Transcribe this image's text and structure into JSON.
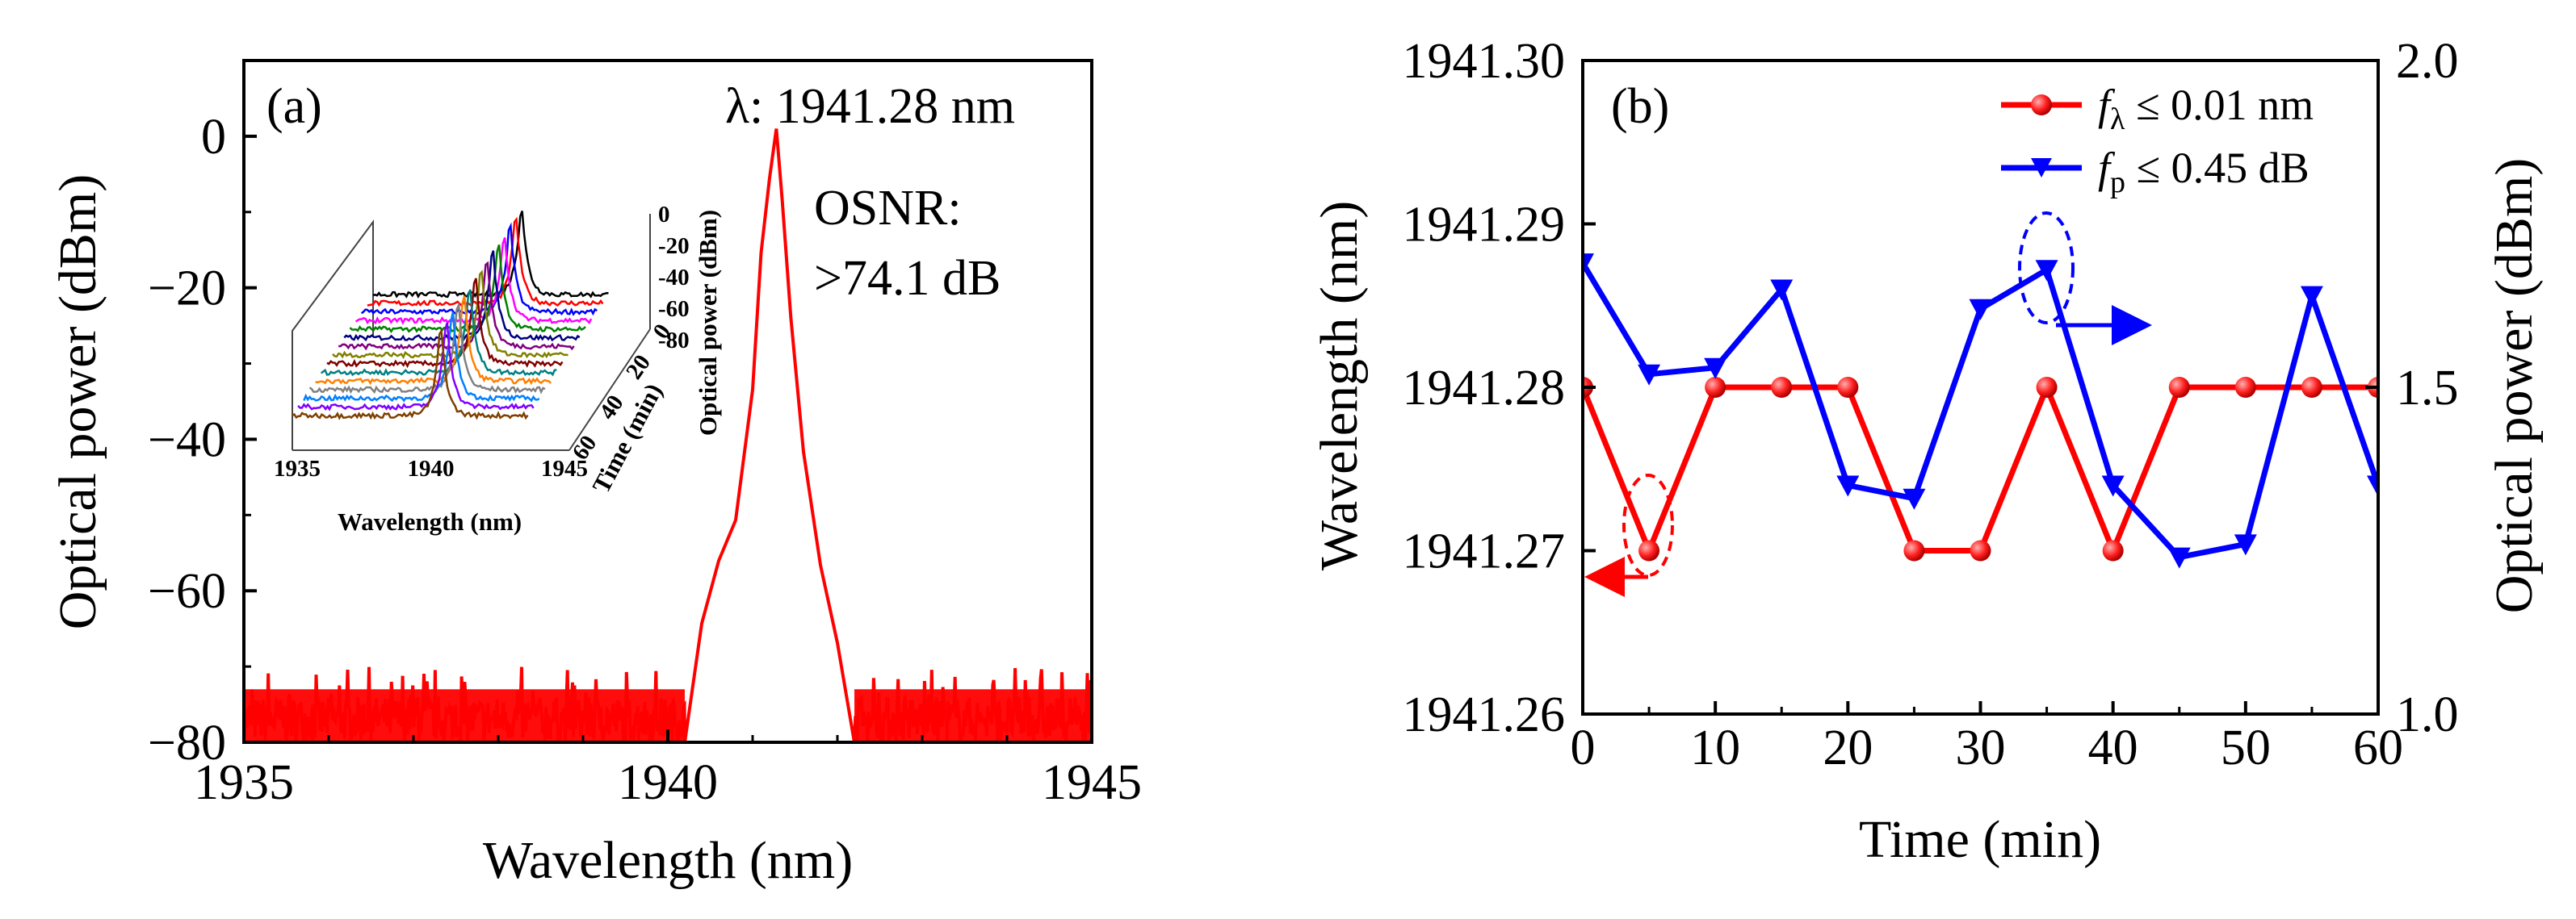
{
  "chart_data": [
    {
      "panel": "(a)",
      "type": "line",
      "xlabel": "Wavelength (nm)",
      "ylabel": "Optical power (dBm)",
      "xlim": [
        1935,
        1945
      ],
      "ylim": [
        -80,
        10
      ],
      "x_ticks": [
        "1935",
        "1940",
        "1945"
      ],
      "y_ticks": [
        "0",
        "−20",
        "−40",
        "−60",
        "−80"
      ],
      "peak_label": "λ: 1941.28 nm",
      "osnr_label": "OSNR:",
      "osnr_value": ">74.1 dB",
      "color": "#ff0000",
      "series": [
        {
          "name": "spectrum",
          "noise_floor_range": [
            -80,
            -70
          ],
          "x": [
            1940.2,
            1940.4,
            1940.6,
            1940.8,
            1941.0,
            1941.1,
            1941.2,
            1941.28,
            1941.35,
            1941.45,
            1941.6,
            1941.8,
            1942.0,
            1942.2
          ],
          "y": [
            -80,
            -65,
            -57,
            -52,
            -33,
            -17,
            -5,
            1,
            -8,
            -22,
            -40,
            -55,
            -65,
            -80
          ]
        }
      ],
      "inset": {
        "type": "waterfall",
        "xlabel": "Wavelength (nm)",
        "ylabel": "Time (min)",
        "zlabel": "Optical power (dBm)",
        "x_ticks": [
          "1935",
          "1940",
          "1945"
        ],
        "y_ticks": [
          "0",
          "20",
          "40",
          "60"
        ],
        "z_ticks": [
          "0",
          "-20",
          "-40",
          "-60",
          "-80"
        ],
        "trace_colors": [
          "#000000",
          "#ff0000",
          "#0000ff",
          "#ff00ff",
          "#008000",
          "#000080",
          "#800080",
          "#808000",
          "#800000",
          "#008080",
          "#ff8000",
          "#808080",
          "#0080ff",
          "#8000ff",
          "#804000"
        ]
      }
    },
    {
      "panel": "(b)",
      "type": "line",
      "xlabel": "Time (min)",
      "ylabel_left": "Wavelength (nm)",
      "ylabel_right": "Optical power (dBm)",
      "xlim": [
        0,
        60
      ],
      "ylim_left": [
        1941.26,
        1941.3
      ],
      "ylim_right": [
        1.0,
        2.0
      ],
      "x_ticks": [
        "0",
        "10",
        "20",
        "30",
        "40",
        "50",
        "60"
      ],
      "y_left_ticks": [
        "1941.26",
        "1941.27",
        "1941.28",
        "1941.29",
        "1941.30"
      ],
      "y_right_ticks": [
        "1.0",
        "1.5",
        "2.0"
      ],
      "series": [
        {
          "name": "wavelength",
          "axis": "left",
          "color": "#ff0000",
          "marker": "circle",
          "legend_f": "f",
          "legend_sub": "λ",
          "legend_rest": " ≤ 0.01 nm",
          "x": [
            0,
            5,
            10,
            15,
            20,
            25,
            30,
            35,
            40,
            45,
            50,
            55,
            60
          ],
          "y": [
            1941.28,
            1941.27,
            1941.28,
            1941.28,
            1941.28,
            1941.27,
            1941.27,
            1941.28,
            1941.27,
            1941.28,
            1941.28,
            1941.28,
            1941.28
          ]
        },
        {
          "name": "power",
          "axis": "right",
          "color": "#0000ff",
          "marker": "triangle-down",
          "legend_f": "f",
          "legend_sub": "p",
          "legend_rest": " ≤ 0.45 dB",
          "x": [
            0,
            5,
            10,
            15,
            20,
            25,
            30,
            35,
            40,
            45,
            50,
            55,
            60
          ],
          "y": [
            1.69,
            1.52,
            1.53,
            1.65,
            1.35,
            1.33,
            1.62,
            1.68,
            1.35,
            1.24,
            1.26,
            1.64,
            1.35
          ]
        }
      ]
    }
  ]
}
